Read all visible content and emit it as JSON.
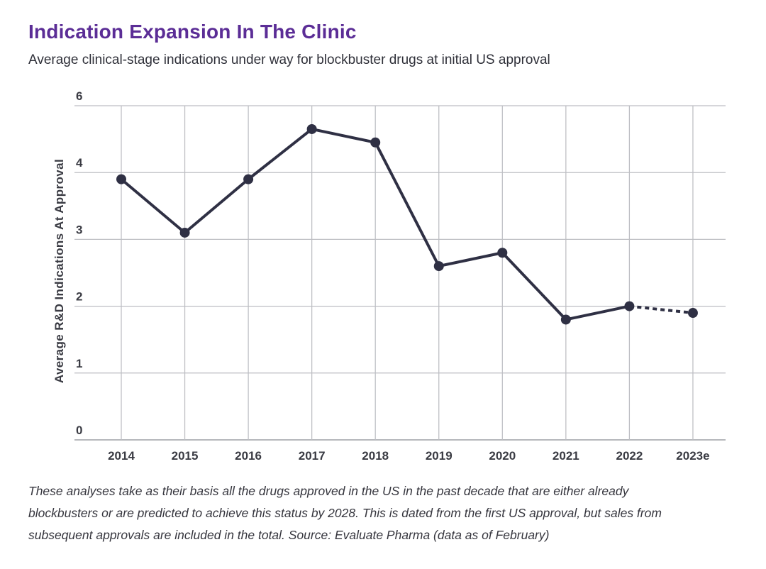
{
  "header": {
    "title": "Indication Expansion In The Clinic",
    "subtitle": "Average clinical-stage indications under way for blockbuster drugs at initial US approval"
  },
  "chart_data": {
    "type": "line",
    "title": "Indication Expansion In The Clinic",
    "subtitle": "Average clinical-stage indications under way for blockbuster drugs at initial US approval",
    "xlabel": "",
    "ylabel": "Average R&D Indications At Approval",
    "categories": [
      "2014",
      "2015",
      "2016",
      "2017",
      "2018",
      "2019",
      "2020",
      "2021",
      "2022",
      "2023e"
    ],
    "series": [
      {
        "name": "Average R&D indications at approval",
        "values": [
          3.9,
          3.1,
          3.9,
          4.65,
          4.45,
          2.6,
          2.8,
          1.8,
          2.0,
          1.9
        ]
      }
    ],
    "ylim": [
      0,
      6
    ],
    "ytick_labels_top_to_bottom": [
      "6",
      "4",
      "3",
      "2",
      "1",
      "0"
    ],
    "grid": true,
    "legend": "none",
    "dashed_last_segment": true,
    "dashed_segment_note": "2022 to 2023e segment is dashed (estimate)",
    "line_color": "#2F3044",
    "point_color": "#2F3044",
    "grid_color": "#BDBEC3",
    "baseline_color": "#9EA0A6"
  },
  "footer": {
    "lines": [
      "These analyses take as their basis all the drugs approved in the US in the past decade that are either already",
      "blockbusters or are predicted to achieve this status by 2028. This is dated from the first US approval, but sales from",
      "subsequent approvals are included in the total. Source: Evaluate Pharma (data as of February)"
    ]
  },
  "colors": {
    "title": "#5B2D96",
    "body_text": "#2F3039",
    "axis_text": "#3A3B43"
  }
}
